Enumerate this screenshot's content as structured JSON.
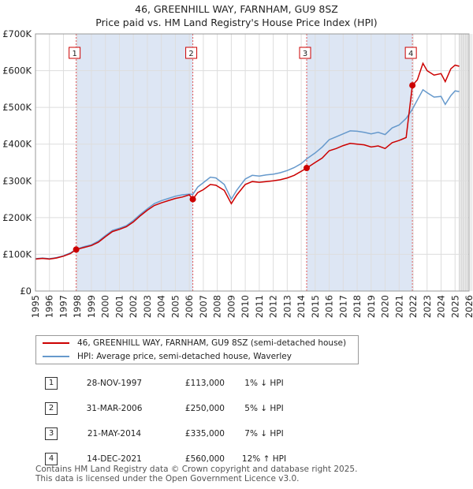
{
  "title_line1": "46, GREENHILL WAY, FARNHAM, GU9 8SZ",
  "title_line2": "Price paid vs. HM Land Registry's House Price Index (HPI)",
  "colors": {
    "price": "#cc0000",
    "hpi": "#6699cc",
    "shade": "#dde6f4",
    "grid": "#dddddd"
  },
  "chart_data": {
    "type": "line",
    "x_ticks": [
      "1995",
      "1996",
      "1997",
      "1998",
      "1999",
      "2000",
      "2001",
      "2002",
      "2003",
      "2004",
      "2005",
      "2006",
      "2007",
      "2008",
      "2009",
      "2010",
      "2011",
      "2012",
      "2013",
      "2014",
      "2015",
      "2016",
      "2017",
      "2018",
      "2019",
      "2020",
      "2021",
      "2022",
      "2023",
      "2024",
      "2025",
      "2026"
    ],
    "y_ticks": [
      "£0",
      "£100K",
      "£200K",
      "£300K",
      "£400K",
      "£500K",
      "£600K",
      "£700K"
    ],
    "xlim": [
      1995,
      2026
    ],
    "ylim": [
      0,
      700000
    ],
    "grid": true,
    "series": [
      {
        "name": "46, GREENHILL WAY, FARNHAM, GU9 8SZ (semi-detached house)",
        "color": "#cc0000",
        "points": [
          [
            1995.0,
            87000
          ],
          [
            1995.5,
            89000
          ],
          [
            1996.0,
            87000
          ],
          [
            1996.5,
            90000
          ],
          [
            1997.0,
            95000
          ],
          [
            1997.5,
            102000
          ],
          [
            1997.9,
            113000
          ],
          [
            1998.5,
            119000
          ],
          [
            1999.0,
            124000
          ],
          [
            1999.5,
            133000
          ],
          [
            2000.0,
            148000
          ],
          [
            2000.5,
            162000
          ],
          [
            2001.0,
            168000
          ],
          [
            2001.5,
            175000
          ],
          [
            2002.0,
            188000
          ],
          [
            2002.5,
            205000
          ],
          [
            2003.0,
            220000
          ],
          [
            2003.5,
            233000
          ],
          [
            2004.0,
            240000
          ],
          [
            2004.5,
            246000
          ],
          [
            2005.0,
            252000
          ],
          [
            2005.5,
            256000
          ],
          [
            2006.0,
            262000
          ],
          [
            2006.25,
            250000
          ],
          [
            2006.6,
            268000
          ],
          [
            2007.0,
            276000
          ],
          [
            2007.5,
            290000
          ],
          [
            2007.9,
            288000
          ],
          [
            2008.5,
            274000
          ],
          [
            2009.0,
            238000
          ],
          [
            2009.4,
            262000
          ],
          [
            2010.0,
            290000
          ],
          [
            2010.5,
            298000
          ],
          [
            2011.0,
            296000
          ],
          [
            2011.5,
            298000
          ],
          [
            2012.0,
            300000
          ],
          [
            2012.5,
            303000
          ],
          [
            2013.0,
            308000
          ],
          [
            2013.5,
            315000
          ],
          [
            2014.0,
            326000
          ],
          [
            2014.4,
            335000
          ],
          [
            2015.0,
            350000
          ],
          [
            2015.5,
            362000
          ],
          [
            2016.0,
            382000
          ],
          [
            2016.5,
            388000
          ],
          [
            2017.0,
            396000
          ],
          [
            2017.5,
            402000
          ],
          [
            2018.0,
            400000
          ],
          [
            2018.5,
            398000
          ],
          [
            2019.0,
            392000
          ],
          [
            2019.5,
            395000
          ],
          [
            2020.0,
            388000
          ],
          [
            2020.5,
            404000
          ],
          [
            2021.0,
            410000
          ],
          [
            2021.5,
            418000
          ],
          [
            2021.95,
            560000
          ],
          [
            2022.3,
            575000
          ],
          [
            2022.7,
            620000
          ],
          [
            2023.0,
            600000
          ],
          [
            2023.5,
            588000
          ],
          [
            2024.0,
            592000
          ],
          [
            2024.3,
            570000
          ],
          [
            2024.7,
            605000
          ],
          [
            2025.0,
            615000
          ],
          [
            2025.3,
            612000
          ]
        ]
      },
      {
        "name": "HPI: Average price, semi-detached house, Waverley",
        "color": "#6699cc",
        "points": [
          [
            1995.0,
            88000
          ],
          [
            1995.5,
            90000
          ],
          [
            1996.0,
            88000
          ],
          [
            1996.5,
            91000
          ],
          [
            1997.0,
            96000
          ],
          [
            1997.5,
            104000
          ],
          [
            1997.9,
            114000
          ],
          [
            1998.5,
            121000
          ],
          [
            1999.0,
            126000
          ],
          [
            1999.5,
            136000
          ],
          [
            2000.0,
            151000
          ],
          [
            2000.5,
            165000
          ],
          [
            2001.0,
            171000
          ],
          [
            2001.5,
            178000
          ],
          [
            2002.0,
            192000
          ],
          [
            2002.5,
            209000
          ],
          [
            2003.0,
            224000
          ],
          [
            2003.5,
            238000
          ],
          [
            2004.0,
            246000
          ],
          [
            2004.5,
            252000
          ],
          [
            2005.0,
            258000
          ],
          [
            2005.5,
            262000
          ],
          [
            2006.0,
            264000
          ],
          [
            2006.25,
            263000
          ],
          [
            2006.6,
            283000
          ],
          [
            2007.0,
            295000
          ],
          [
            2007.5,
            310000
          ],
          [
            2007.9,
            308000
          ],
          [
            2008.5,
            290000
          ],
          [
            2009.0,
            250000
          ],
          [
            2009.4,
            275000
          ],
          [
            2010.0,
            305000
          ],
          [
            2010.5,
            315000
          ],
          [
            2011.0,
            313000
          ],
          [
            2011.5,
            316000
          ],
          [
            2012.0,
            318000
          ],
          [
            2012.5,
            322000
          ],
          [
            2013.0,
            328000
          ],
          [
            2013.5,
            336000
          ],
          [
            2014.0,
            347000
          ],
          [
            2014.4,
            360000
          ],
          [
            2015.0,
            376000
          ],
          [
            2015.5,
            392000
          ],
          [
            2016.0,
            412000
          ],
          [
            2016.5,
            420000
          ],
          [
            2017.0,
            428000
          ],
          [
            2017.5,
            436000
          ],
          [
            2018.0,
            435000
          ],
          [
            2018.5,
            432000
          ],
          [
            2019.0,
            428000
          ],
          [
            2019.5,
            432000
          ],
          [
            2020.0,
            426000
          ],
          [
            2020.5,
            444000
          ],
          [
            2021.0,
            452000
          ],
          [
            2021.5,
            470000
          ],
          [
            2021.95,
            495000
          ],
          [
            2022.3,
            520000
          ],
          [
            2022.7,
            548000
          ],
          [
            2023.0,
            540000
          ],
          [
            2023.5,
            528000
          ],
          [
            2024.0,
            530000
          ],
          [
            2024.3,
            508000
          ],
          [
            2024.7,
            532000
          ],
          [
            2025.0,
            545000
          ],
          [
            2025.3,
            543000
          ]
        ]
      }
    ],
    "sales": [
      {
        "n": "1",
        "x": 1997.91,
        "price": 113000
      },
      {
        "n": "2",
        "x": 2006.25,
        "price": 250000
      },
      {
        "n": "3",
        "x": 2014.39,
        "price": 335000
      },
      {
        "n": "4",
        "x": 2021.95,
        "price": 560000
      }
    ],
    "shaded_spans": [
      [
        1997.91,
        2006.25
      ],
      [
        2014.39,
        2021.95
      ]
    ],
    "forecast_start": 2025.3
  },
  "legend": {
    "price_label": "46, GREENHILL WAY, FARNHAM, GU9 8SZ (semi-detached house)",
    "hpi_label": "HPI: Average price, semi-detached house, Waverley"
  },
  "table": [
    {
      "n": "1",
      "date": "28-NOV-1997",
      "price": "£113,000",
      "hpi": "1% ↓ HPI"
    },
    {
      "n": "2",
      "date": "31-MAR-2006",
      "price": "£250,000",
      "hpi": "5% ↓ HPI"
    },
    {
      "n": "3",
      "date": "21-MAY-2014",
      "price": "£335,000",
      "hpi": "7% ↓ HPI"
    },
    {
      "n": "4",
      "date": "14-DEC-2021",
      "price": "£560,000",
      "hpi": "12% ↑ HPI"
    }
  ],
  "footer_line1": "Contains HM Land Registry data © Crown copyright and database right 2025.",
  "footer_line2": "This data is licensed under the Open Government Licence v3.0."
}
